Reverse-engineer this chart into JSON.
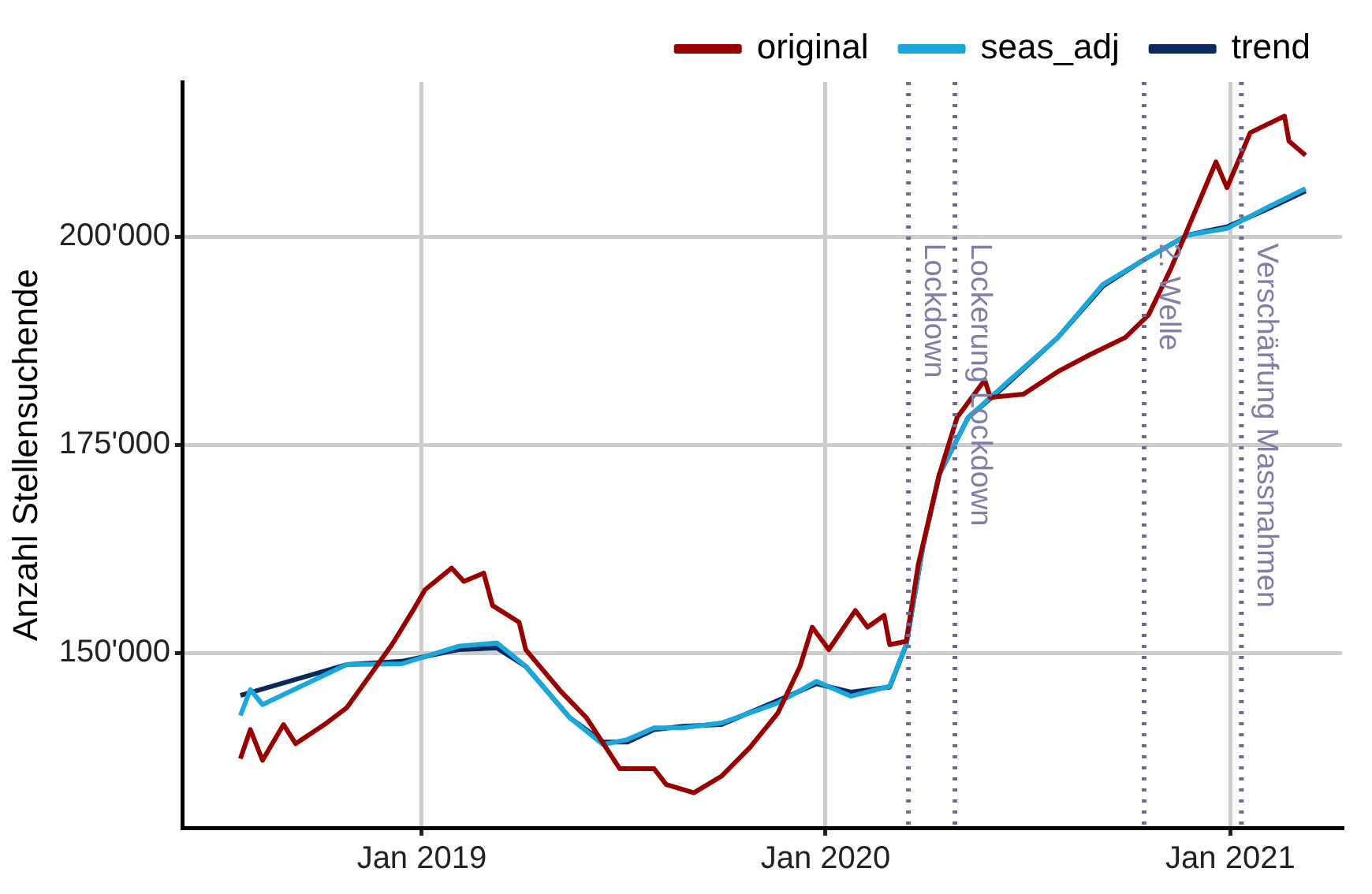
{
  "chart_data": {
    "type": "line",
    "ylabel": "Anzahl Stellensuchende",
    "xlim": [
      "2018-05-30",
      "2021-04-12"
    ],
    "xticks": [
      {
        "value": "2019-01-01",
        "label": "Jan 2019"
      },
      {
        "value": "2020-01-01",
        "label": "Jan 2020"
      },
      {
        "value": "2021-01-01",
        "label": "Jan 2021"
      }
    ],
    "ylim": [
      129000,
      218600
    ],
    "yticks": [
      {
        "value": 150000,
        "label": "150'000"
      },
      {
        "value": 175000,
        "label": "175'000"
      },
      {
        "value": 200000,
        "label": "200'000"
      }
    ],
    "grid": true,
    "legend": "top",
    "marker": "none",
    "line_style": "solid",
    "series": [
      {
        "name": "original",
        "color": "#990000",
        "x": [
          "2018-07-21",
          "2018-07-30",
          "2018-08-10",
          "2018-08-29",
          "2018-09-09",
          "2018-10-05",
          "2018-10-25",
          "2018-11-13",
          "2018-12-05",
          "2018-12-24",
          "2019-01-04",
          "2019-01-28",
          "2019-02-08",
          "2019-02-26",
          "2019-03-06",
          "2019-03-30",
          "2019-04-05",
          "2019-05-06",
          "2019-05-30",
          "2019-06-29",
          "2019-07-30",
          "2019-08-10",
          "2019-09-04",
          "2019-09-29",
          "2019-10-25",
          "2019-11-19",
          "2019-12-09",
          "2019-12-20",
          "2020-01-04",
          "2020-01-28",
          "2020-02-08",
          "2020-02-23",
          "2020-02-28",
          "2020-03-14",
          "2020-03-25",
          "2020-04-13",
          "2020-04-29",
          "2020-05-24",
          "2020-05-29",
          "2020-06-28",
          "2020-07-29",
          "2020-08-28",
          "2020-09-28",
          "2020-10-19",
          "2020-11-08",
          "2020-11-23",
          "2020-12-19",
          "2020-12-29",
          "2021-01-19",
          "2021-01-28",
          "2021-02-19",
          "2021-02-23",
          "2021-03-10"
        ],
        "values": [
          137300,
          140800,
          137100,
          141400,
          139100,
          141400,
          143400,
          146900,
          151000,
          155100,
          157600,
          160200,
          158600,
          159600,
          155700,
          153700,
          150400,
          145500,
          142200,
          136100,
          136100,
          134200,
          133200,
          135200,
          138700,
          142800,
          148400,
          153100,
          150400,
          155100,
          153100,
          154500,
          151000,
          151400,
          160700,
          171500,
          178300,
          182800,
          180700,
          181100,
          183800,
          185900,
          187900,
          190600,
          196100,
          200800,
          209000,
          205900,
          212500,
          213100,
          214500,
          211500,
          209800
        ]
      },
      {
        "name": "seas_adj",
        "color": "#1aa7dc",
        "x": [
          "2018-07-21",
          "2018-07-30",
          "2018-08-10",
          "2018-10-25",
          "2018-12-14",
          "2019-02-03",
          "2019-03-10",
          "2019-04-05",
          "2019-05-15",
          "2019-06-14",
          "2019-07-06",
          "2019-07-30",
          "2019-08-25",
          "2019-09-29",
          "2019-11-19",
          "2019-12-24",
          "2020-01-24",
          "2020-02-28",
          "2020-03-14",
          "2020-03-29",
          "2020-04-13",
          "2020-05-09",
          "2020-06-09",
          "2020-07-29",
          "2020-09-08",
          "2020-10-13",
          "2020-11-23",
          "2020-12-29",
          "2021-02-03",
          "2021-03-10"
        ],
        "values": [
          142500,
          145600,
          143800,
          148600,
          148700,
          150800,
          151200,
          148400,
          142200,
          139000,
          139600,
          141000,
          141000,
          141600,
          144000,
          146600,
          144800,
          146000,
          151000,
          162700,
          171500,
          178300,
          182000,
          187900,
          194300,
          197100,
          200200,
          201000,
          203500,
          205800
        ]
      },
      {
        "name": "trend",
        "color": "#0a2a5e",
        "x": [
          "2018-07-21",
          "2018-10-25",
          "2018-12-14",
          "2019-02-03",
          "2019-03-10",
          "2019-04-05",
          "2019-05-15",
          "2019-06-14",
          "2019-07-06",
          "2019-07-30",
          "2019-08-25",
          "2019-09-29",
          "2019-11-19",
          "2019-12-24",
          "2020-01-24",
          "2020-02-28",
          "2020-03-14",
          "2020-03-29",
          "2020-04-13",
          "2020-05-09",
          "2020-06-09",
          "2020-07-29",
          "2020-09-08",
          "2020-10-13",
          "2020-11-23",
          "2020-12-29",
          "2021-02-03",
          "2021-03-10"
        ],
        "values": [
          144900,
          148600,
          149000,
          150400,
          150600,
          148400,
          142200,
          139300,
          139300,
          140800,
          141200,
          141400,
          144300,
          146300,
          145300,
          145900,
          151000,
          162700,
          171500,
          178300,
          181800,
          187900,
          194100,
          197100,
          200200,
          201200,
          203300,
          205500
        ]
      }
    ],
    "ref_lines": [
      {
        "axis": "x",
        "value": "2020-03-16",
        "label": "Lockdown",
        "color": "#6a6a94",
        "line_style": "dotted"
      },
      {
        "axis": "x",
        "value": "2020-04-27",
        "label": "Lockerung Lockdown",
        "color": "#6a6a94",
        "line_style": "dotted"
      },
      {
        "axis": "x",
        "value": "2020-10-15",
        "label": "2. Welle",
        "color": "#6a6a94",
        "line_style": "dotted"
      },
      {
        "axis": "x",
        "value": "2021-01-11",
        "label": "Verschärfung Massnahmen",
        "color": "#6a6a94",
        "line_style": "dotted"
      }
    ]
  }
}
